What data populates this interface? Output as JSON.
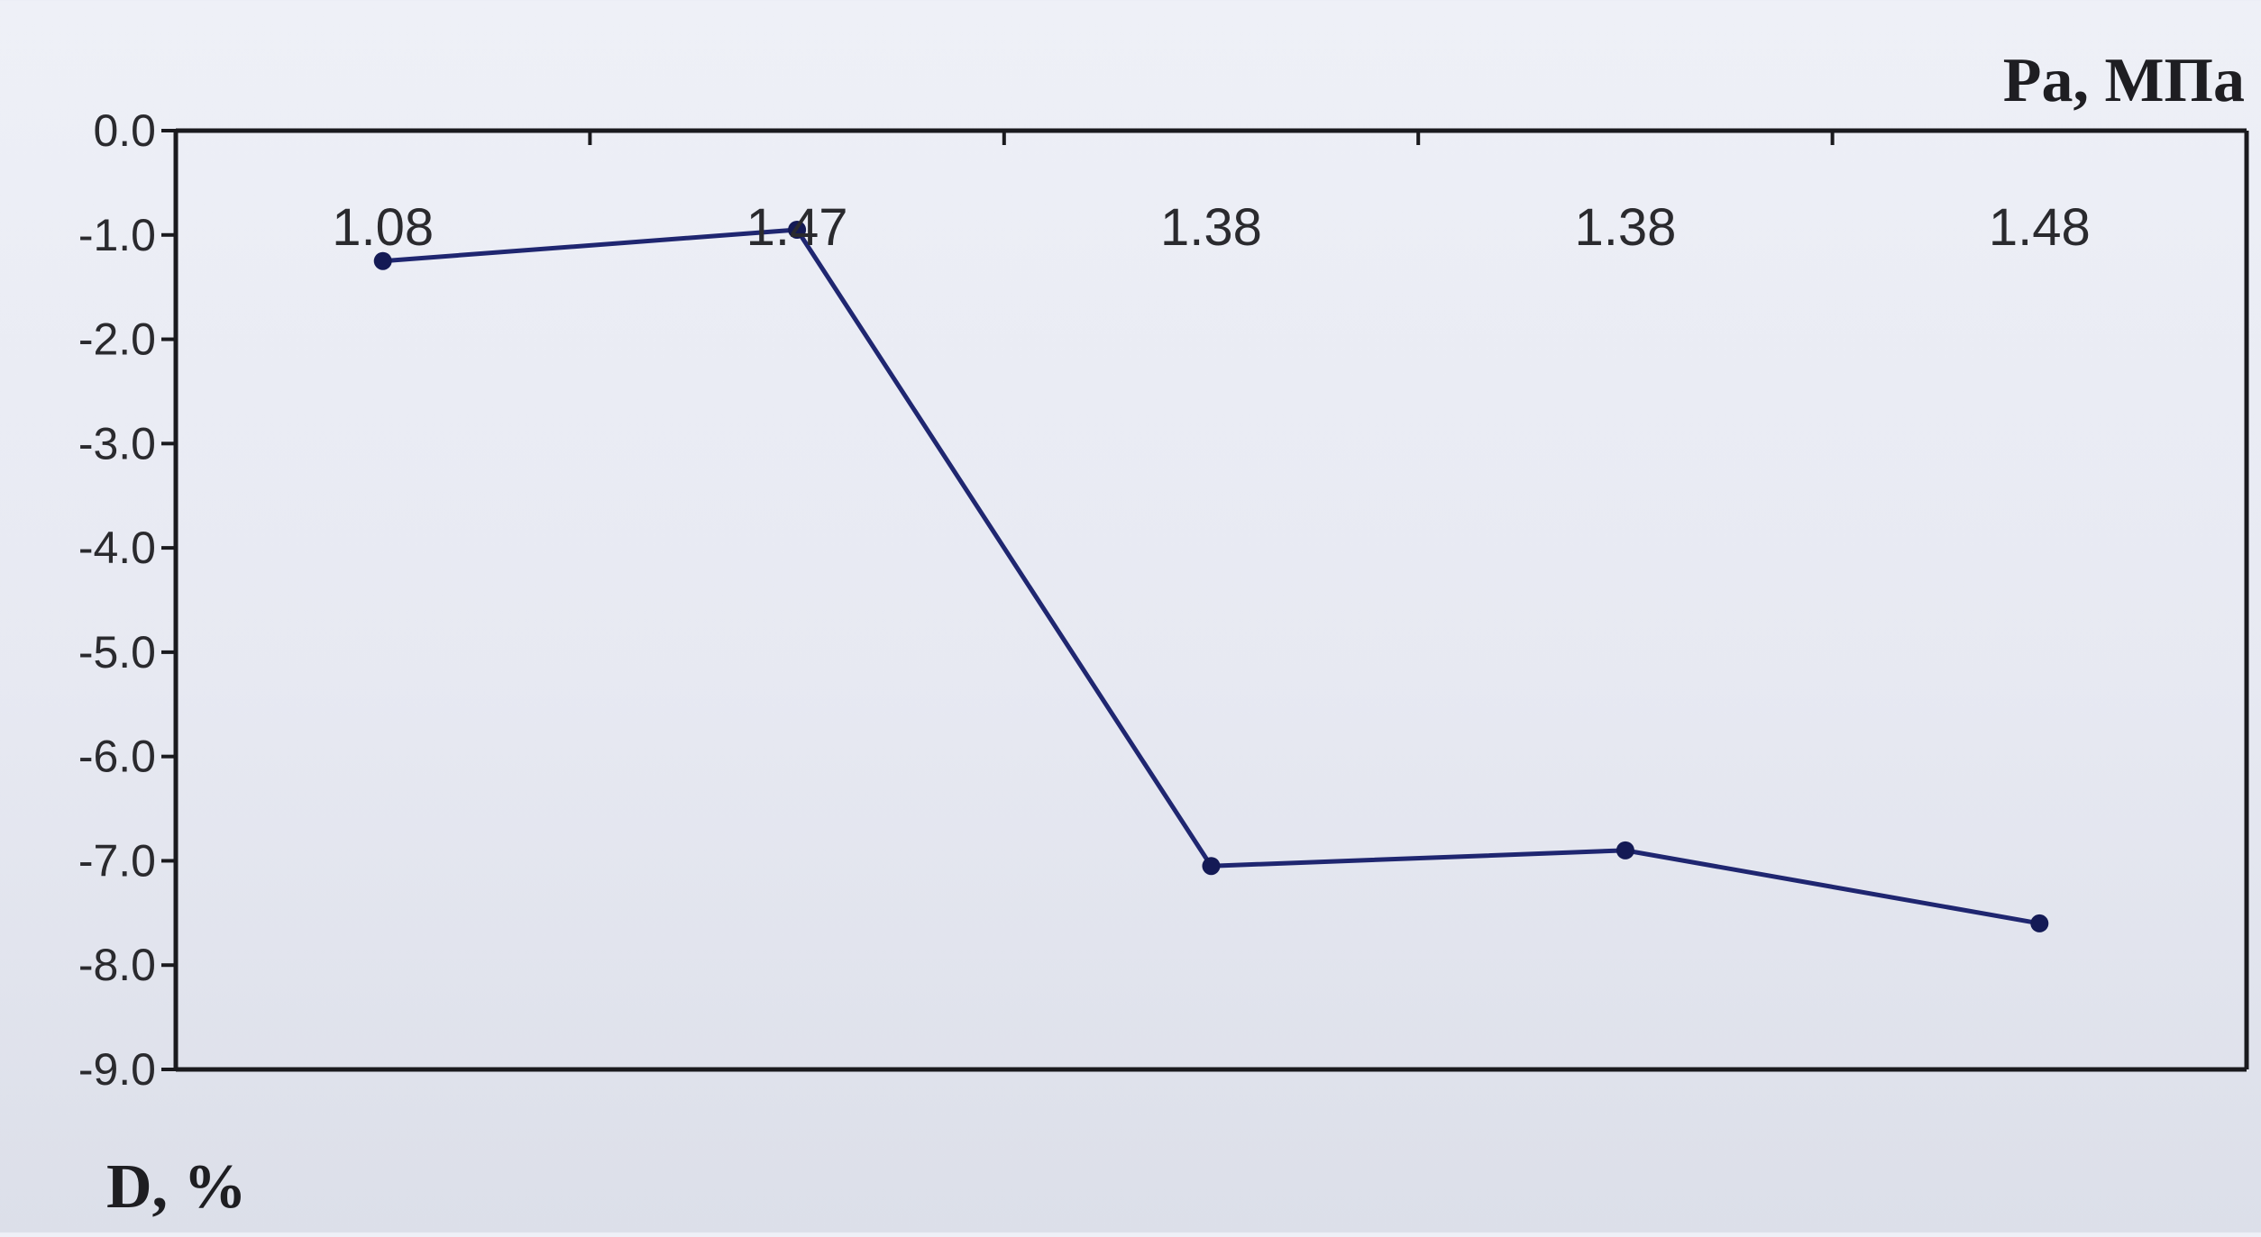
{
  "chart_data": {
    "type": "line",
    "x_axis_position": "top",
    "x_unit_label": "Pa, МПа",
    "y_unit_label": "D, %",
    "ylim": [
      -9.0,
      0.0
    ],
    "yticks": [
      "0.0",
      "-1.0",
      "-2.0",
      "-3.0",
      "-4.0",
      "-5.0",
      "-6.0",
      "-7.0",
      "-8.0",
      "-9.0"
    ],
    "ytick_values": [
      0,
      -1,
      -2,
      -3,
      -4,
      -5,
      -6,
      -7,
      -8,
      -9
    ],
    "categories": [
      "1.08",
      "1.47",
      "1.38",
      "1.38",
      "1.48"
    ],
    "series": [
      {
        "values": [
          -1.25,
          -0.95,
          -7.05,
          -6.9,
          -7.6
        ]
      }
    ],
    "grid": false,
    "legend": "none",
    "colors": {
      "line": "#1f2670",
      "marker": "#141a55",
      "axis": "#1a1a1e",
      "text": "#2a2a2e"
    }
  }
}
